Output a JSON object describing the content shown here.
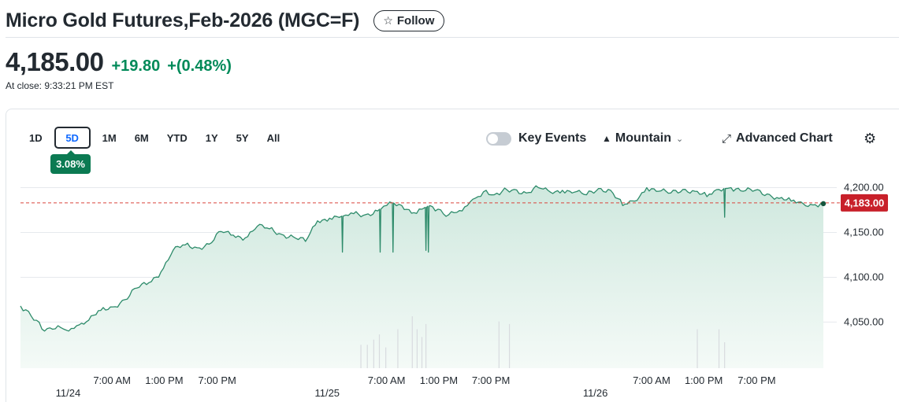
{
  "header": {
    "title": "Micro Gold Futures,Feb-2026 (MGC=F)",
    "follow_label": "Follow",
    "follow_icon": "star-icon"
  },
  "quote": {
    "price": "4,185.00",
    "change": "+19.80",
    "change_pct": "+(0.48%)",
    "close_time": "At close: 9:33:21 PM EST",
    "up_color": "#008a59"
  },
  "ranges": {
    "items": [
      "1D",
      "5D",
      "1M",
      "6M",
      "YTD",
      "1Y",
      "5Y",
      "All"
    ],
    "active": "5D",
    "active_change": "3.08%"
  },
  "controls": {
    "key_events_label": "Key Events",
    "key_events_on": false,
    "chart_type_label": "Mountain",
    "chart_type_icon": "mountain-icon",
    "advanced_label": "Advanced Chart",
    "advanced_icon": "expand-icon",
    "settings_icon": "gear-icon"
  },
  "chart_data": {
    "type": "area",
    "y_ticks": [
      "4,200.00",
      "4,150.00",
      "4,100.00",
      "4,050.00"
    ],
    "y_tick_values": [
      4200,
      4150,
      4100,
      4050
    ],
    "ylim": [
      4010,
      4218
    ],
    "reference_price": 4183.0,
    "reference_label": "4,183.00",
    "x_ticks": [
      {
        "label": "7:00 AM",
        "row": 1,
        "t": 0.114
      },
      {
        "label": "1:00 PM",
        "row": 1,
        "t": 0.179
      },
      {
        "label": "7:00 PM",
        "row": 1,
        "t": 0.245
      },
      {
        "label": "11/24",
        "row": 2,
        "t": 0.0593
      },
      {
        "label": "7:00 AM",
        "row": 1,
        "t": 0.456
      },
      {
        "label": "1:00 PM",
        "row": 1,
        "t": 0.521
      },
      {
        "label": "7:00 PM",
        "row": 1,
        "t": 0.586
      },
      {
        "label": "11/25",
        "row": 2,
        "t": 0.382
      },
      {
        "label": "7:00 AM",
        "row": 1,
        "t": 0.786
      },
      {
        "label": "1:00 PM",
        "row": 1,
        "t": 0.851
      },
      {
        "label": "7:00 PM",
        "row": 1,
        "t": 0.917
      },
      {
        "label": "11/26",
        "row": 2,
        "t": 0.716
      }
    ],
    "series": [
      {
        "t": [
          0.0,
          0.01,
          0.02,
          0.03,
          0.04,
          0.05,
          0.06,
          0.07,
          0.085,
          0.1,
          0.115,
          0.13,
          0.145,
          0.16,
          0.175,
          0.19,
          0.205,
          0.22,
          0.235,
          0.25,
          0.265,
          0.28,
          0.295,
          0.31,
          0.325,
          0.34,
          0.355,
          0.37,
          0.385,
          0.4,
          0.415,
          0.43,
          0.445,
          0.46,
          0.475,
          0.49,
          0.5,
          0.51,
          0.52,
          0.53,
          0.54,
          0.55,
          0.56,
          0.57,
          0.58,
          0.59,
          0.6,
          0.615,
          0.63,
          0.645,
          0.66,
          0.675,
          0.69,
          0.705,
          0.72,
          0.735,
          0.75,
          0.765,
          0.78,
          0.795,
          0.81,
          0.825,
          0.84,
          0.855,
          0.87,
          0.885,
          0.9,
          0.915,
          0.93,
          0.945,
          0.96,
          0.975,
          0.99,
          1.0
        ],
        "values": [
          4068,
          4062,
          4052,
          4040,
          4042,
          4044,
          4040,
          4046,
          4052,
          4063,
          4067,
          4075,
          4088,
          4094,
          4106,
          4130,
          4136,
          4133,
          4137,
          4151,
          4147,
          4144,
          4157,
          4154,
          4148,
          4145,
          4140,
          4163,
          4166,
          4168,
          4171,
          4170,
          4174,
          4184,
          4180,
          4172,
          4176,
          4180,
          4176,
          4168,
          4172,
          4174,
          4184,
          4190,
          4197,
          4192,
          4196,
          4198,
          4194,
          4200,
          4195,
          4197,
          4195,
          4192,
          4199,
          4197,
          4180,
          4185,
          4200,
          4196,
          4194,
          4198,
          4196,
          4190,
          4198,
          4200,
          4196,
          4197,
          4193,
          4188,
          4185,
          4182,
          4181,
          4183
        ],
        "spikes": [
          {
            "t": 0.401,
            "low": 4128
          },
          {
            "t": 0.448,
            "low": 4128
          },
          {
            "t": 0.464,
            "low": 4128
          },
          {
            "t": 0.505,
            "low": 4130
          },
          {
            "t": 0.508,
            "low": 4128
          },
          {
            "t": 0.877,
            "low": 4167
          }
        ]
      }
    ],
    "volume_bars": [
      {
        "t": 0.424,
        "h": 0.18
      },
      {
        "t": 0.432,
        "h": 0.18
      },
      {
        "t": 0.44,
        "h": 0.22
      },
      {
        "t": 0.447,
        "h": 0.26
      },
      {
        "t": 0.455,
        "h": 0.16
      },
      {
        "t": 0.47,
        "h": 0.3
      },
      {
        "t": 0.488,
        "h": 0.4
      },
      {
        "t": 0.494,
        "h": 0.3
      },
      {
        "t": 0.5,
        "h": 0.24
      },
      {
        "t": 0.505,
        "h": 0.34
      },
      {
        "t": 0.596,
        "h": 0.36
      },
      {
        "t": 0.609,
        "h": 0.34
      },
      {
        "t": 0.843,
        "h": 0.3
      },
      {
        "t": 0.87,
        "h": 0.3
      },
      {
        "t": 0.877,
        "h": 0.2
      }
    ],
    "line_color": "#2d8b6a",
    "fill_color": "#e0f1ea",
    "reference_color": "#d9453d",
    "grid": true
  }
}
